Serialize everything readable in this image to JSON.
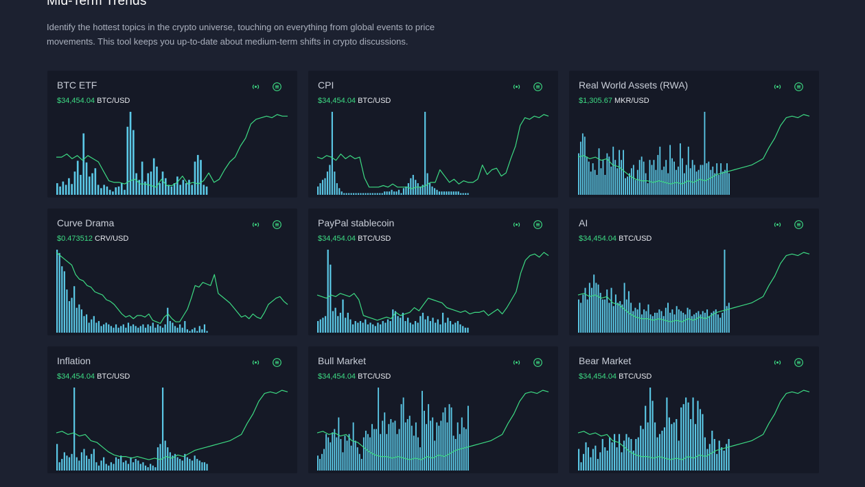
{
  "page": {
    "title": "Mid-Term Trends",
    "description": "Identify the hottest topics in the crypto universe, touching on everything from global events to price movements. This tool keeps you up-to-date about medium-term shifts in crypto discussions."
  },
  "colors": {
    "bars": "#5bc8e6",
    "line": "#3ddc84",
    "price": "#3ddc84",
    "card": "#151926",
    "background": "#1c2130"
  },
  "card_icons": [
    "broadcast-icon",
    "menu-icon"
  ],
  "cards": [
    {
      "title": "BTC ETF",
      "price": "$34,454.04",
      "pair": "BTC/USD"
    },
    {
      "title": "CPI",
      "price": "$34,454.04",
      "pair": "BTC/USD"
    },
    {
      "title": "Real World Assets (RWA)",
      "price": "$1,305.67",
      "pair": "MKR/USD"
    },
    {
      "title": "Curve Drama",
      "price": "$0.473512",
      "pair": "CRV/USD"
    },
    {
      "title": "PayPal stablecoin",
      "price": "$34,454.04",
      "pair": "BTC/USD"
    },
    {
      "title": "AI",
      "price": "$34,454.04",
      "pair": "BTC/USD"
    },
    {
      "title": "Inflation",
      "price": "$34,454.04",
      "pair": "BTC/USD"
    },
    {
      "title": "Bull Market",
      "price": "$34,454.04",
      "pair": "BTC/USD"
    },
    {
      "title": "Bear Market",
      "price": "$34,454.04",
      "pair": "BTC/USD"
    }
  ],
  "chart_data": [
    {
      "type": "bar+line",
      "bars": [
        14,
        10,
        16,
        12,
        20,
        13,
        28,
        41,
        24,
        74,
        39,
        22,
        26,
        32,
        12,
        8,
        12,
        10,
        6,
        4,
        9,
        10,
        14,
        6,
        82,
        100,
        78,
        26,
        18,
        40,
        16,
        26,
        28,
        44,
        34,
        14,
        28,
        20,
        12,
        10,
        14,
        22,
        12,
        18,
        14,
        18,
        12,
        40,
        48,
        42,
        12,
        10
      ],
      "line": [
        46,
        46,
        50,
        44,
        48,
        42,
        48,
        44,
        40,
        28,
        16,
        14,
        14,
        12,
        16,
        18,
        12,
        12,
        10,
        8,
        18,
        10,
        10,
        14,
        22,
        12,
        14,
        12,
        16,
        26,
        14,
        18,
        30,
        40,
        46,
        60,
        70,
        88,
        94,
        96,
        98,
        96,
        100,
        98,
        98
      ]
    },
    {
      "type": "bar+line",
      "bars": [
        10,
        14,
        18,
        20,
        28,
        36,
        100,
        28,
        14,
        8,
        4,
        2,
        2,
        2,
        2,
        2,
        2,
        2,
        2,
        2,
        2,
        2,
        2,
        2,
        2,
        2,
        2,
        2,
        4,
        4,
        4,
        6,
        4,
        4,
        6,
        2,
        8,
        10,
        14,
        20,
        24,
        18,
        14,
        10,
        12,
        100,
        26,
        14,
        10,
        8,
        6,
        4,
        4,
        4,
        4,
        4,
        4,
        4,
        4,
        4,
        2,
        2,
        2,
        2
      ],
      "line": [
        46,
        44,
        48,
        46,
        42,
        50,
        44,
        48,
        44,
        46,
        20,
        8,
        8,
        8,
        10,
        8,
        12,
        8,
        8,
        8,
        6,
        8,
        8,
        10,
        14,
        14,
        30,
        22,
        14,
        18,
        12,
        16,
        14,
        14,
        18,
        36,
        24,
        30,
        32,
        22,
        26,
        44,
        60,
        86,
        96,
        94,
        98,
        96,
        100,
        98
      ]
    },
    {
      "type": "bar+line",
      "bars": [
        50,
        64,
        74,
        70,
        46,
        40,
        28,
        38,
        30,
        24,
        56,
        32,
        42,
        24,
        50,
        46,
        34,
        58,
        42,
        32,
        54,
        42,
        54,
        20,
        22,
        26,
        32,
        36,
        18,
        30,
        42,
        46,
        40,
        26,
        14,
        42,
        36,
        42,
        30,
        48,
        58,
        30,
        34,
        42,
        26,
        60,
        44,
        40,
        30,
        34,
        62,
        44,
        26,
        36,
        58,
        32,
        42,
        36,
        28,
        30,
        36,
        36,
        100,
        38,
        40,
        30,
        34,
        26,
        38,
        24,
        38,
        28,
        30,
        38,
        26
      ]
    },
    {
      "type": "bar+line",
      "bars": [
        100,
        96,
        80,
        74,
        52,
        38,
        42,
        56,
        30,
        34,
        28,
        20,
        22,
        12,
        16,
        20,
        12,
        14,
        8,
        10,
        12,
        10,
        8,
        6,
        10,
        6,
        8,
        10,
        6,
        12,
        8,
        10,
        8,
        6,
        8,
        10,
        6,
        10,
        8,
        12,
        6,
        10,
        8,
        6,
        10,
        30,
        14,
        12,
        8,
        6,
        10,
        6,
        14,
        4,
        2,
        4,
        6,
        2,
        8,
        4,
        10,
        2
      ],
      "line": [
        100,
        96,
        92,
        88,
        84,
        72,
        66,
        64,
        58,
        56,
        50,
        48,
        46,
        40,
        38,
        34,
        28,
        22,
        18,
        20,
        16,
        20,
        20,
        18,
        22,
        14,
        12,
        10,
        18,
        22,
        16,
        12,
        12,
        20,
        28,
        42,
        58,
        56,
        62,
        60,
        58,
        72,
        48,
        44,
        40,
        36,
        30,
        24,
        18,
        20,
        16,
        22,
        18,
        16,
        24,
        34,
        38,
        42,
        44,
        38,
        34
      ]
    },
    {
      "type": "bar+line",
      "bars": [
        14,
        16,
        18,
        20,
        100,
        82,
        26,
        30,
        20,
        24,
        40,
        18,
        24,
        16,
        10,
        14,
        12,
        14,
        12,
        16,
        10,
        12,
        10,
        8,
        12,
        10,
        14,
        12,
        16,
        14,
        28,
        26,
        20,
        18,
        24,
        14,
        18,
        12,
        10,
        14,
        12,
        20,
        24,
        16,
        20,
        14,
        18,
        12,
        16,
        10,
        24,
        12,
        18,
        14,
        10,
        12,
        14,
        10,
        8,
        6,
        6
      ],
      "line": [
        46,
        44,
        42,
        46,
        44,
        48,
        46,
        44,
        48,
        40,
        20,
        18,
        16,
        14,
        16,
        18,
        16,
        24,
        20,
        22,
        24,
        30,
        26,
        34,
        42,
        40,
        38,
        36,
        30,
        28,
        26,
        24,
        26,
        22,
        24,
        24,
        26,
        20,
        24,
        28,
        22,
        30,
        40,
        50,
        74,
        90,
        96,
        98,
        94,
        100,
        96
      ]
    },
    {
      "type": "bar+line",
      "bars": [
        40,
        36,
        46,
        54,
        40,
        60,
        54,
        70,
        60,
        58,
        48,
        40,
        40,
        52,
        36,
        54,
        32,
        46,
        36,
        38,
        34,
        60,
        40,
        50,
        36,
        26,
        30,
        28,
        36,
        22,
        28,
        26,
        34,
        22,
        20,
        24,
        24,
        28,
        26,
        20,
        30,
        36,
        24,
        28,
        22,
        32,
        28,
        26,
        24,
        22,
        30,
        28,
        20,
        22,
        24,
        26,
        22,
        26,
        24,
        28,
        20,
        24,
        26,
        28,
        22,
        18,
        24,
        100,
        32,
        36
      ]
    },
    {
      "type": "bar+line",
      "bars": [
        32,
        10,
        14,
        22,
        18,
        16,
        20,
        100,
        16,
        12,
        22,
        26,
        18,
        14,
        20,
        26,
        10,
        6,
        12,
        16,
        8,
        6,
        10,
        8,
        16,
        14,
        18,
        10,
        12,
        8,
        16,
        10,
        14,
        12,
        8,
        10,
        6,
        4,
        8,
        6,
        4,
        28,
        32,
        100,
        36,
        28,
        22,
        18,
        20,
        16,
        14,
        12,
        20,
        16,
        14,
        12,
        18,
        14,
        12,
        10,
        10,
        8
      ]
    },
    {
      "type": "bar+line",
      "bars": [
        18,
        14,
        20,
        26,
        44,
        40,
        34,
        46,
        50,
        40,
        64,
        38,
        22,
        42,
        36,
        44,
        30,
        58,
        36,
        28,
        20,
        14,
        40,
        48,
        44,
        40,
        56,
        50,
        50,
        100,
        44,
        60,
        70,
        44,
        56,
        62,
        58,
        60,
        44,
        50,
        80,
        88,
        58,
        62,
        66,
        54,
        42,
        58,
        40,
        28,
        96,
        72,
        56,
        80,
        60,
        64,
        36,
        58,
        54,
        60,
        70,
        76,
        58,
        80,
        76,
        42,
        38,
        58,
        44,
        64,
        52,
        50,
        78
      ]
    },
    {
      "type": "bar+line",
      "bars": [
        26,
        10,
        20,
        34,
        28,
        16,
        26,
        30,
        14,
        22,
        38,
        28,
        24,
        40,
        34,
        44,
        28,
        44,
        22,
        36,
        44,
        40,
        38,
        24,
        38,
        40,
        54,
        50,
        78,
        58,
        100,
        84,
        58,
        40,
        44,
        48,
        52,
        88,
        64,
        56,
        58,
        62,
        36,
        76,
        80,
        88,
        82,
        62,
        88,
        56,
        84,
        74,
        68,
        40,
        26,
        32,
        48,
        38,
        20,
        36,
        28,
        24,
        32,
        38
      ]
    }
  ]
}
